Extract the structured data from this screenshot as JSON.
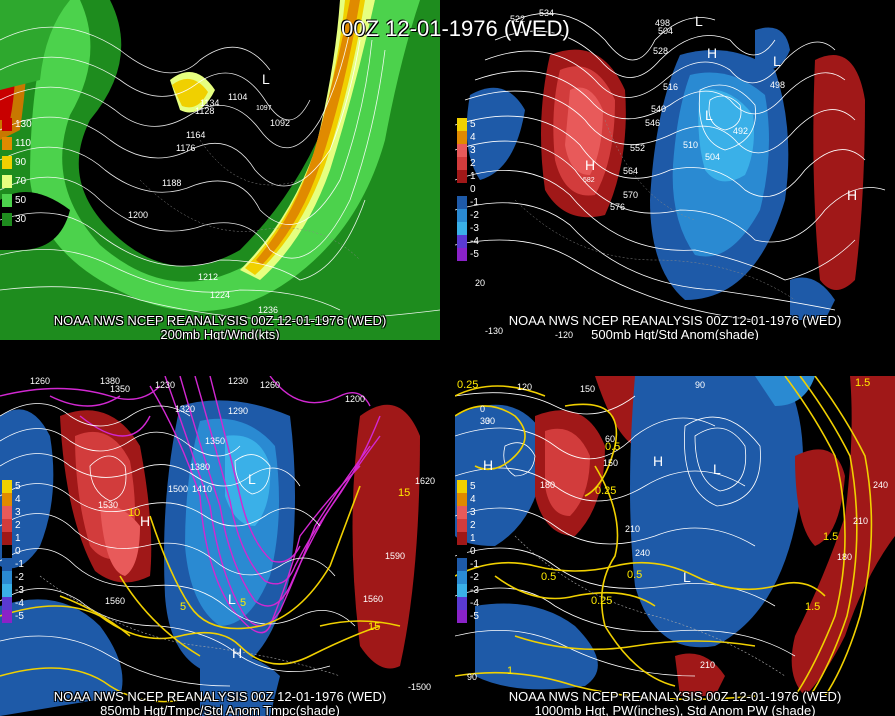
{
  "title": "00Z 12-01-1976 (WED)",
  "panels": [
    {
      "id": "p1",
      "caption_line1": "NOAA NWS NCEP REANALYSIS 00Z 12-01-1976 (WED)",
      "caption_line2": "200mb Hgt/Wnd(kts)",
      "legend": [
        "130",
        "110",
        "90",
        "70",
        "50",
        "30"
      ],
      "legend_colors": [
        "#c80000",
        "#e08a00",
        "#f0d000",
        "#e6ff80",
        "#4cd24c",
        "#1e8c1e"
      ],
      "labels": [
        "1092",
        "1104",
        "1128",
        "1134",
        "1164",
        "1176",
        "1188",
        "1200",
        "1212",
        "1224",
        "1236",
        "L",
        "1097"
      ]
    },
    {
      "id": "p2",
      "caption_line1": "NOAA NWS NCEP REANALYSIS 00Z 12-01-1976 (WED)",
      "caption_line2": "500mb Hgt/Std Anom(shade)",
      "legend": [
        "5",
        "4",
        "3",
        "2",
        "1",
        "0",
        "-1",
        "-2",
        "-3",
        "-4",
        "-5"
      ],
      "labels": [
        "534",
        "522",
        "498",
        "504",
        "516",
        "528",
        "540",
        "546",
        "552",
        "564",
        "570",
        "576",
        "510",
        "504",
        "492",
        "498",
        "H",
        "582",
        "L",
        "H",
        "L",
        "L",
        "H",
        "20",
        "-130",
        "-120"
      ]
    },
    {
      "id": "p3",
      "caption_line1": "NOAA NWS NCEP REANALYSIS 00Z 12-01-1976 (WED)",
      "caption_line2": "850mb Hgt/Tmpc/Std Anom Tmpc(shade)",
      "legend": [
        "5",
        "4",
        "3",
        "2",
        "1",
        "0",
        "-1",
        "-2",
        "-3",
        "-4",
        "-5"
      ],
      "labels": [
        "1260",
        "1380",
        "1350",
        "1230",
        "1320",
        "1290",
        "1260",
        "1230",
        "1200",
        "1350",
        "1380",
        "1410",
        "1530",
        "1560",
        "1590",
        "1620",
        "1560",
        "1500",
        "H",
        "L",
        "L",
        "H",
        "10",
        "15",
        "5",
        "15",
        "5",
        "-1500"
      ]
    },
    {
      "id": "p4",
      "caption_line1": "NOAA NWS NCEP REANALYSIS 00Z 12-01-1976 (WED)",
      "caption_line2": "1000mb Hgt, PW(inches), Std Anom PW (shade)",
      "legend": [
        "5",
        "4",
        "3",
        "2",
        "1",
        "0",
        "-1",
        "-2",
        "-3",
        "-4",
        "-5"
      ],
      "labels": [
        "0.25",
        "120",
        "150",
        "90",
        "30",
        "60",
        "0",
        "150",
        "180",
        "210",
        "240",
        "0.5",
        "1.5",
        "1",
        "0.25",
        "0.5",
        "0.25",
        "0.5",
        "1.5",
        "180",
        "210",
        "240",
        "H",
        "H",
        "L",
        "L",
        "90",
        "210",
        "1.5",
        "30"
      ]
    }
  ]
}
